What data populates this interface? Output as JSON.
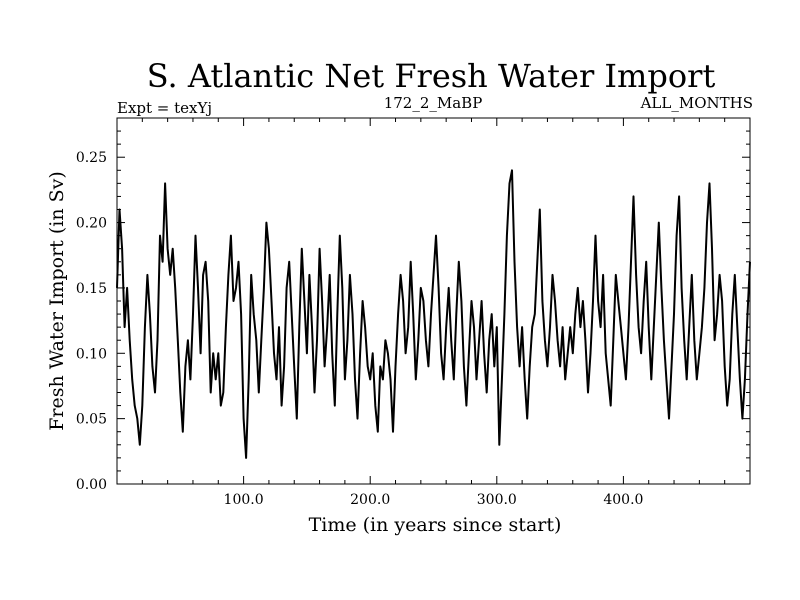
{
  "chart_data": {
    "type": "line",
    "title": "S. Atlantic Net Fresh Water Import",
    "subtitle_left": "Expt = texYj",
    "subtitle_center": "172_2_MaBP",
    "subtitle_right": "ALL_MONTHS",
    "xlabel": "Time (in years since start)",
    "ylabel": "Fresh Water Import (in Sv)",
    "xlim": [
      0,
      500
    ],
    "ylim": [
      0,
      0.28
    ],
    "x_ticks": [
      100,
      200,
      300,
      400
    ],
    "x_tick_labels": [
      "100.0",
      "200.0",
      "300.0",
      "400.0"
    ],
    "y_ticks": [
      0,
      0.05,
      0.1,
      0.15,
      0.2,
      0.25
    ],
    "y_tick_labels": [
      "0.00",
      "0.05",
      "0.10",
      "0.15",
      "0.20",
      "0.25"
    ],
    "grid": false,
    "line_color": "#000000",
    "series": [
      {
        "x": [
          0,
          2,
          4,
          6,
          8,
          10,
          12,
          14,
          16,
          18,
          20,
          22,
          24,
          26,
          28,
          30,
          32,
          34,
          36,
          38,
          40,
          42,
          44,
          46,
          48,
          50,
          52,
          54,
          56,
          58,
          60,
          62,
          64,
          66,
          68,
          70,
          72,
          74,
          76,
          78,
          80,
          82,
          84,
          86,
          88,
          90,
          92,
          94,
          96,
          98,
          100,
          102,
          104,
          106,
          108,
          110,
          112,
          114,
          116,
          118,
          120,
          122,
          124,
          126,
          128,
          130,
          132,
          134,
          136,
          138,
          140,
          142,
          144,
          146,
          148,
          150,
          152,
          154,
          156,
          158,
          160,
          162,
          164,
          166,
          168,
          170,
          172,
          174,
          176,
          178,
          180,
          182,
          184,
          186,
          188,
          190,
          192,
          194,
          196,
          198,
          200,
          202,
          204,
          206,
          208,
          210,
          212,
          214,
          216,
          218,
          220,
          222,
          224,
          226,
          228,
          230,
          232,
          234,
          236,
          238,
          240,
          242,
          244,
          246,
          248,
          250,
          252,
          254,
          256,
          258,
          260,
          262,
          264,
          266,
          268,
          270,
          272,
          274,
          276,
          278,
          280,
          282,
          284,
          286,
          288,
          290,
          292,
          294,
          296,
          298,
          300,
          302,
          304,
          306,
          308,
          310,
          312,
          314,
          316,
          318,
          320,
          322,
          324,
          326,
          328,
          330,
          332,
          334,
          336,
          338,
          340,
          342,
          344,
          346,
          348,
          350,
          352,
          354,
          356,
          358,
          360,
          362,
          364,
          366,
          368,
          370,
          372,
          374,
          376,
          378,
          380,
          382,
          384,
          386,
          388,
          390,
          392,
          394,
          396,
          398,
          400,
          402,
          404,
          406,
          408,
          410,
          412,
          414,
          416,
          418,
          420,
          422,
          424,
          426,
          428,
          430,
          432,
          434,
          436,
          438,
          440,
          442,
          444,
          446,
          448,
          450,
          452,
          454,
          456,
          458,
          460,
          462,
          464,
          466,
          468,
          470,
          472,
          474,
          476,
          478,
          480,
          482,
          484,
          486,
          488,
          490,
          492,
          494,
          496,
          498,
          500
        ],
        "y": [
          0.15,
          0.21,
          0.18,
          0.12,
          0.15,
          0.11,
          0.08,
          0.06,
          0.05,
          0.03,
          0.06,
          0.12,
          0.16,
          0.13,
          0.09,
          0.07,
          0.11,
          0.19,
          0.17,
          0.23,
          0.18,
          0.16,
          0.18,
          0.15,
          0.11,
          0.07,
          0.04,
          0.09,
          0.11,
          0.08,
          0.13,
          0.19,
          0.15,
          0.1,
          0.16,
          0.17,
          0.14,
          0.07,
          0.1,
          0.08,
          0.1,
          0.06,
          0.07,
          0.12,
          0.16,
          0.19,
          0.14,
          0.15,
          0.17,
          0.13,
          0.05,
          0.02,
          0.08,
          0.16,
          0.13,
          0.11,
          0.07,
          0.11,
          0.15,
          0.2,
          0.18,
          0.14,
          0.1,
          0.08,
          0.12,
          0.06,
          0.09,
          0.15,
          0.17,
          0.13,
          0.09,
          0.05,
          0.12,
          0.18,
          0.14,
          0.1,
          0.16,
          0.12,
          0.07,
          0.11,
          0.18,
          0.14,
          0.09,
          0.12,
          0.16,
          0.1,
          0.06,
          0.13,
          0.19,
          0.15,
          0.08,
          0.11,
          0.16,
          0.13,
          0.08,
          0.05,
          0.1,
          0.14,
          0.12,
          0.09,
          0.08,
          0.1,
          0.06,
          0.04,
          0.09,
          0.08,
          0.11,
          0.1,
          0.08,
          0.04,
          0.09,
          0.13,
          0.16,
          0.14,
          0.1,
          0.12,
          0.17,
          0.13,
          0.08,
          0.11,
          0.15,
          0.14,
          0.11,
          0.09,
          0.13,
          0.16,
          0.19,
          0.15,
          0.1,
          0.08,
          0.12,
          0.15,
          0.11,
          0.08,
          0.13,
          0.17,
          0.14,
          0.09,
          0.06,
          0.1,
          0.14,
          0.12,
          0.08,
          0.11,
          0.14,
          0.1,
          0.07,
          0.11,
          0.13,
          0.09,
          0.12,
          0.03,
          0.08,
          0.13,
          0.19,
          0.23,
          0.24,
          0.17,
          0.12,
          0.09,
          0.12,
          0.08,
          0.05,
          0.09,
          0.12,
          0.13,
          0.17,
          0.21,
          0.14,
          0.11,
          0.09,
          0.12,
          0.16,
          0.14,
          0.11,
          0.09,
          0.12,
          0.08,
          0.1,
          0.12,
          0.1,
          0.13,
          0.15,
          0.12,
          0.14,
          0.11,
          0.07,
          0.1,
          0.14,
          0.19,
          0.14,
          0.12,
          0.16,
          0.1,
          0.08,
          0.06,
          0.11,
          0.16,
          0.14,
          0.12,
          0.1,
          0.08,
          0.12,
          0.17,
          0.22,
          0.16,
          0.12,
          0.1,
          0.14,
          0.17,
          0.12,
          0.08,
          0.12,
          0.16,
          0.2,
          0.15,
          0.11,
          0.08,
          0.05,
          0.09,
          0.13,
          0.19,
          0.22,
          0.15,
          0.11,
          0.08,
          0.12,
          0.16,
          0.11,
          0.08,
          0.1,
          0.12,
          0.15,
          0.2,
          0.23,
          0.18,
          0.11,
          0.13,
          0.16,
          0.14,
          0.09,
          0.06,
          0.08,
          0.13,
          0.16,
          0.12,
          0.08,
          0.05,
          0.08,
          0.13,
          0.17
        ]
      }
    ]
  }
}
